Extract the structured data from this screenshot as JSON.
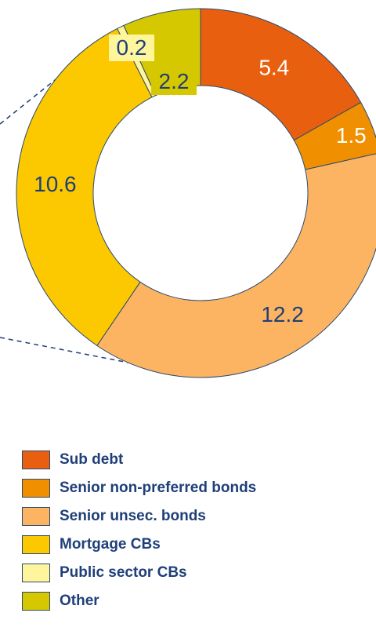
{
  "chart_data": {
    "type": "pie",
    "variant": "donut",
    "categories": [
      "Sub debt",
      "Senior non-preferred bonds",
      "Senior unsec. bonds",
      "Mortgage CBs",
      "Public sector CBs",
      "Other"
    ],
    "values": [
      5.4,
      1.5,
      12.2,
      10.6,
      0.2,
      2.2
    ],
    "value_labels": [
      "5.4",
      "1.5",
      "12.2",
      "10.6",
      "0.2",
      "2.2"
    ],
    "colors": [
      "#e8600f",
      "#f09000",
      "#fdb462",
      "#fcc800",
      "#fff59d",
      "#d6c800"
    ],
    "label_colors": [
      "#ffffff",
      "#ffffff",
      "#1f3f78",
      "#1f3f78",
      "#1f3f78",
      "#1f3f78"
    ],
    "legend_position": "bottom-left",
    "title": "",
    "xlabel": "",
    "ylabel": ""
  }
}
